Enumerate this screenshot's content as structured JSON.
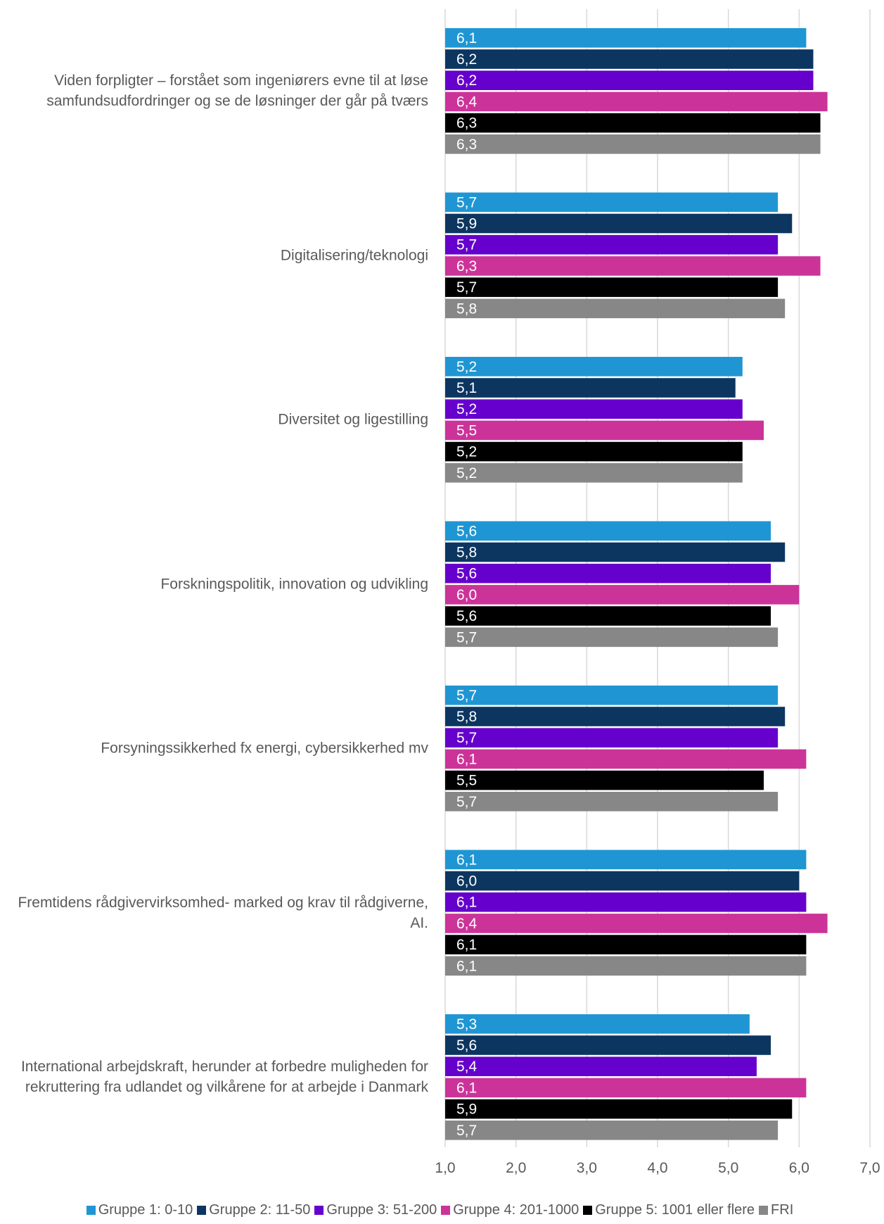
{
  "chart_data": {
    "type": "bar",
    "orientation": "horizontal",
    "categories": [
      "Viden forpligter – forstået som ingeniørers evne til at løse samfundsudfordringer og se de løsninger der går på tværs",
      "Digitalisering/teknologi",
      "Diversitet og ligestilling",
      "Forskningspolitik, innovation og udvikling",
      "Forsyningssikkerhed fx energi, cybersikkerhed mv",
      "Fremtidens rådgivervirksomhed- marked og krav til rådgiverne, AI.",
      "International arbejdskraft, herunder at forbedre muligheden for rekruttering fra udlandet og vilkårene for at arbejde i Danmark"
    ],
    "series": [
      {
        "name": "Gruppe 1: 0-10",
        "color": "#1f96d3",
        "values": [
          6.1,
          5.7,
          5.2,
          5.6,
          5.7,
          6.1,
          5.3
        ],
        "labels": [
          "6,1",
          "5,7",
          "5,2",
          "5,6",
          "5,7",
          "6,1",
          "5,3"
        ]
      },
      {
        "name": "Gruppe 2: 11-50",
        "color": "#0c3660",
        "values": [
          6.2,
          5.9,
          5.1,
          5.8,
          5.8,
          6.0,
          5.6
        ],
        "labels": [
          "6,2",
          "5,9",
          "5,1",
          "5,8",
          "5,8",
          "6,0",
          "5,6"
        ]
      },
      {
        "name": "Gruppe 3: 51-200",
        "color": "#6600cc",
        "values": [
          6.2,
          5.7,
          5.2,
          5.6,
          5.7,
          6.1,
          5.4
        ],
        "labels": [
          "6,2",
          "5,7",
          "5,2",
          "5,6",
          "5,7",
          "6,1",
          "5,4"
        ]
      },
      {
        "name": "Gruppe 4: 201-1000",
        "color": "#cc3399",
        "values": [
          6.4,
          6.3,
          5.5,
          6.0,
          6.1,
          6.4,
          6.1
        ],
        "labels": [
          "6,4",
          "6,3",
          "5,5",
          "6,0",
          "6,1",
          "6,4",
          "6,1"
        ]
      },
      {
        "name": "Gruppe 5: 1001 eller flere",
        "color": "#000000",
        "values": [
          6.3,
          5.7,
          5.2,
          5.6,
          5.5,
          6.1,
          5.9
        ],
        "labels": [
          "6,3",
          "5,7",
          "5,2",
          "5,6",
          "5,5",
          "6,1",
          "5,9"
        ]
      },
      {
        "name": "FRI",
        "color": "#878787",
        "values": [
          6.3,
          5.8,
          5.2,
          5.7,
          5.7,
          6.1,
          5.7
        ],
        "labels": [
          "6,3",
          "5,8",
          "5,2",
          "5,7",
          "5,7",
          "6,1",
          "5,7"
        ]
      }
    ],
    "xlim": [
      1.0,
      7.0
    ],
    "xticks": [
      "1,0",
      "2,0",
      "3,0",
      "4,0",
      "5,0",
      "6,0",
      "7,0"
    ],
    "xtick_values": [
      1,
      2,
      3,
      4,
      5,
      6,
      7
    ],
    "grid": true,
    "legend_position": "bottom",
    "data_label_position": "inside-base",
    "data_label_color": "#ffffff",
    "title": "",
    "xlabel": "",
    "ylabel": ""
  }
}
